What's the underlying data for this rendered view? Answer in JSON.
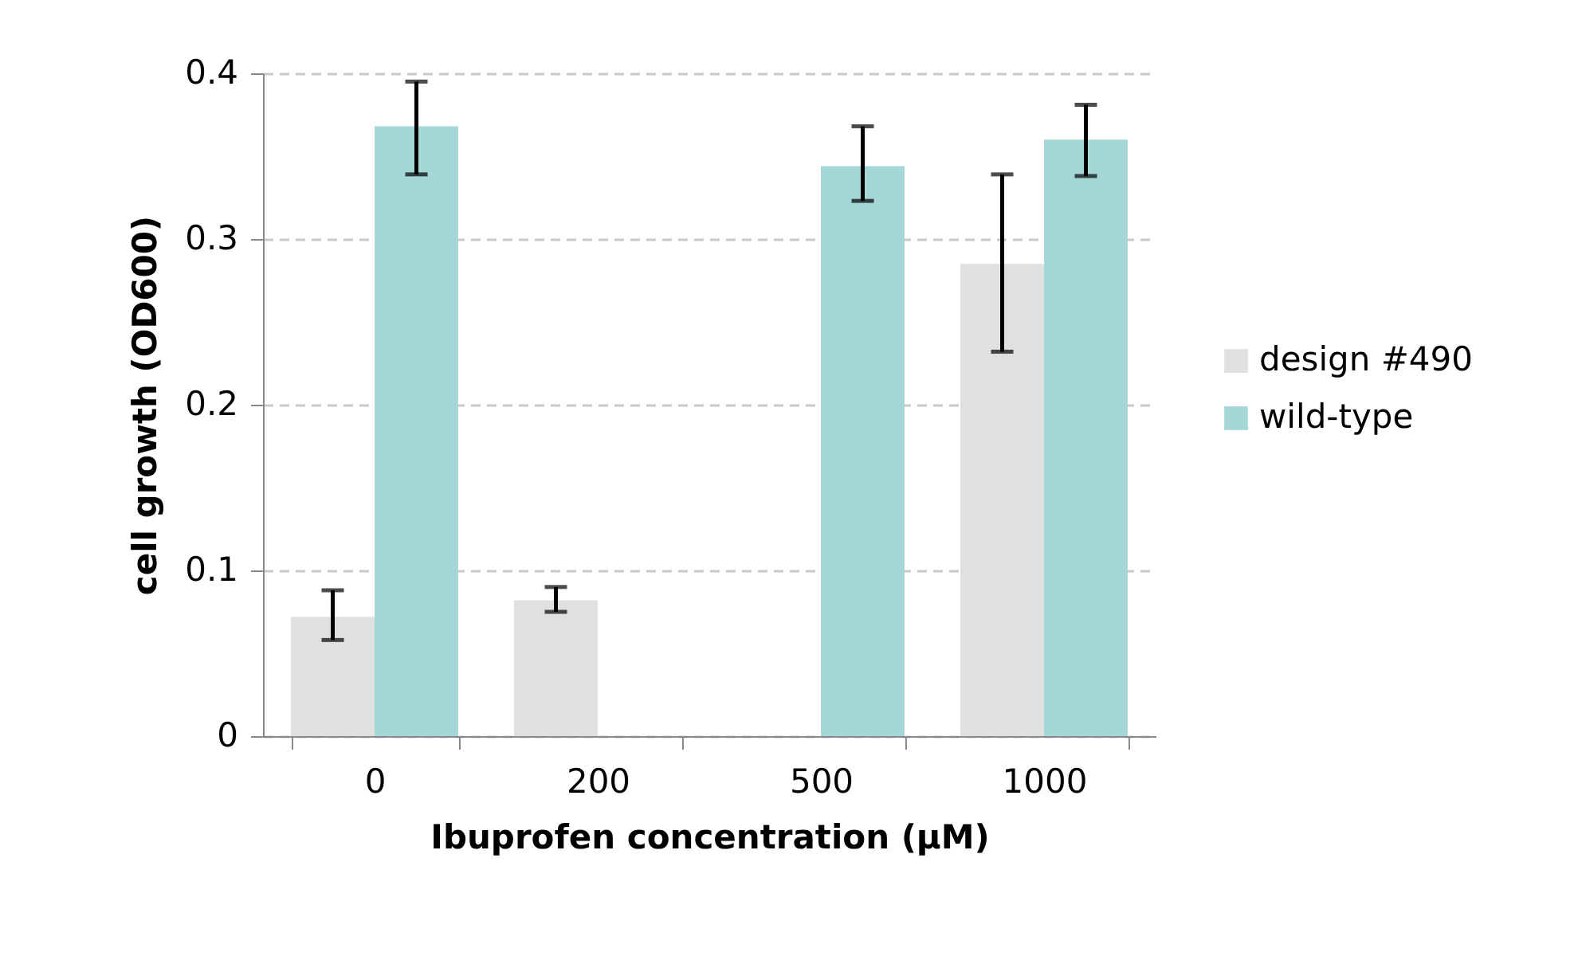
{
  "chart_data": {
    "type": "bar",
    "xlabel": "Ibuprofen concentration (µM)",
    "ylabel": "cell growth (OD600)",
    "categories": [
      "0",
      "200",
      "500",
      "1000"
    ],
    "series": [
      {
        "name": "design #490",
        "color": "#dfe0e0",
        "values": [
          0.072,
          0.082,
          null,
          0.285
        ],
        "errors": [
          [
            0.058,
            0.088
          ],
          [
            0.075,
            0.09
          ],
          null,
          [
            0.232,
            0.339
          ]
        ]
      },
      {
        "name": "wild-type",
        "color": "#a5d7d8",
        "values": [
          0.368,
          null,
          0.344,
          0.36
        ],
        "errors": [
          [
            0.339,
            0.395
          ],
          null,
          [
            0.323,
            0.368
          ],
          [
            0.338,
            0.381
          ]
        ]
      }
    ],
    "ylim": [
      0,
      0.4
    ],
    "yticks": [
      0,
      0.1,
      0.2,
      0.3,
      0.4
    ],
    "grid": "y",
    "legend": "right"
  }
}
